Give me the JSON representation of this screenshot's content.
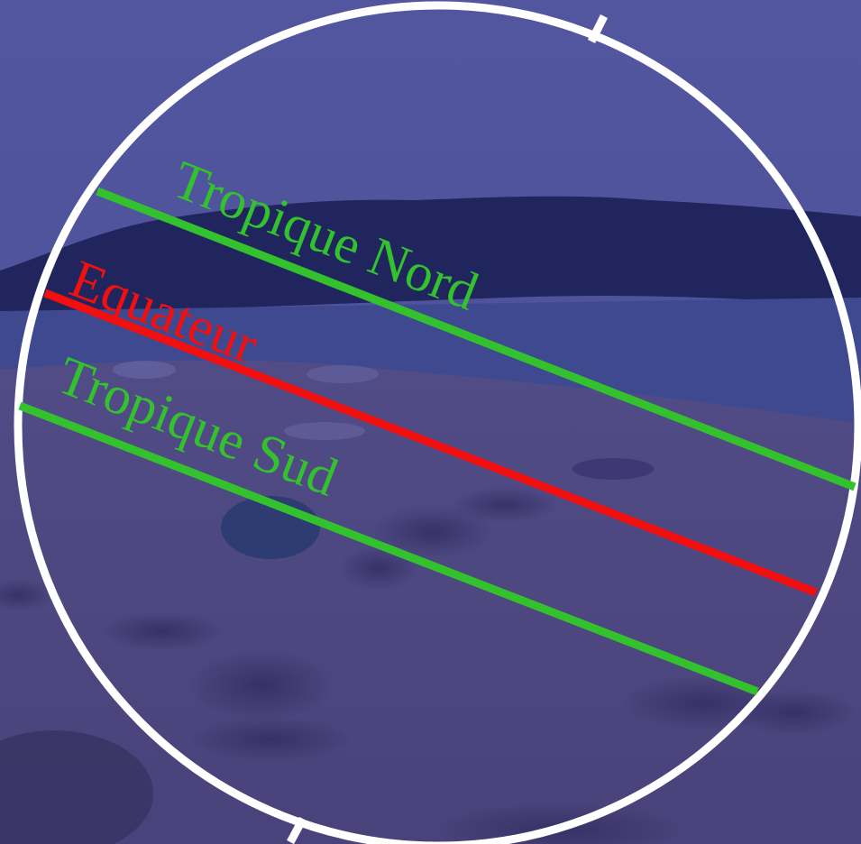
{
  "diagram": {
    "labels": {
      "tropic_north": "Tropique Nord",
      "equator": "Equateur",
      "tropic_south": "Tropique Sud"
    },
    "colors": {
      "tropic": "#33c22e",
      "equator": "#f20f0f",
      "globe_outline": "#ffffff",
      "sky": "#4c4f9c",
      "water": "#3f4a8e",
      "treeline": "#1f2358",
      "sand": "#5a5386"
    },
    "background": "beach scene photo with blue overlay"
  }
}
